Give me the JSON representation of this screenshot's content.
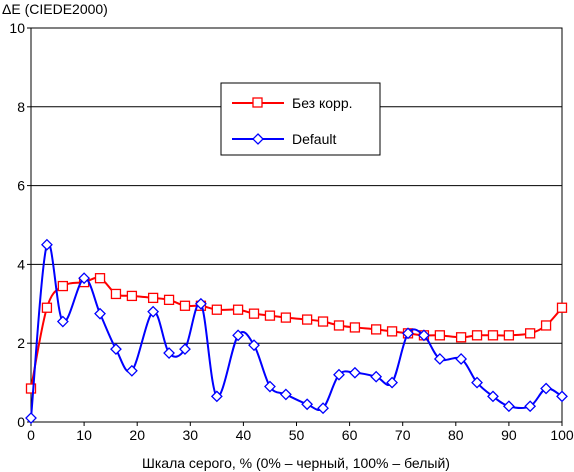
{
  "chart_data": {
    "type": "line",
    "title": "",
    "ylabel": "ΔE (CIEDE2000)",
    "xlabel": "Шкала серого, % (0% – черный, 100% – белый)",
    "xlim": [
      0,
      100
    ],
    "ylim": [
      0,
      10
    ],
    "x_ticks": [
      "0",
      "10",
      "20",
      "30",
      "40",
      "50",
      "60",
      "70",
      "80",
      "90",
      "100"
    ],
    "y_ticks": [
      "0",
      "2",
      "4",
      "6",
      "8",
      "10"
    ],
    "grid": "horizontal",
    "legend_position": "upper-center",
    "x": [
      0,
      3,
      6,
      10,
      13,
      16,
      19,
      23,
      26,
      29,
      32,
      35,
      39,
      42,
      45,
      48,
      52,
      55,
      58,
      61,
      65,
      68,
      71,
      74,
      77,
      81,
      84,
      87,
      90,
      94,
      97,
      100
    ],
    "series": [
      {
        "name": "Без корр.",
        "color": "#ff0000",
        "marker": "square",
        "values": [
          0.85,
          2.9,
          3.45,
          3.55,
          3.65,
          3.25,
          3.2,
          3.15,
          3.1,
          2.95,
          2.95,
          2.85,
          2.85,
          2.75,
          2.7,
          2.65,
          2.6,
          2.55,
          2.45,
          2.4,
          2.35,
          2.3,
          2.25,
          2.2,
          2.2,
          2.15,
          2.2,
          2.2,
          2.2,
          2.25,
          2.45,
          2.9
        ]
      },
      {
        "name": "Default",
        "color": "#0000ff",
        "marker": "diamond",
        "values": [
          0.1,
          4.5,
          2.55,
          3.65,
          2.75,
          1.85,
          1.3,
          2.8,
          1.75,
          1.85,
          3.0,
          0.65,
          2.2,
          1.95,
          0.9,
          0.7,
          0.45,
          0.35,
          1.2,
          1.25,
          1.15,
          1.0,
          2.25,
          2.2,
          1.6,
          1.6,
          1.0,
          0.65,
          0.4,
          0.4,
          0.85,
          0.65
        ]
      }
    ]
  }
}
